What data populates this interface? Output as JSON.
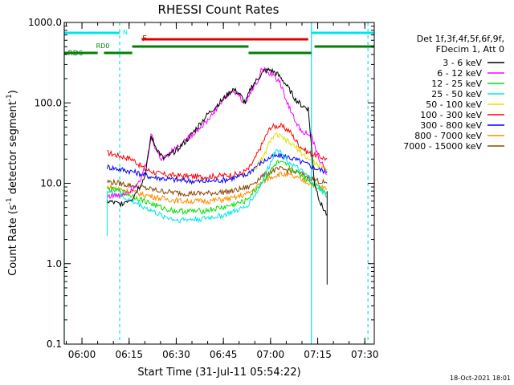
{
  "chart_data": {
    "type": "line",
    "title": "RHESSI Count Rates",
    "xlabel": "Start Time (31-Jul-11 05:54:22)",
    "ylabel_main": "Count Rate (s",
    "ylabel_sup1": "-1",
    "ylabel_mid": " detector segment",
    "ylabel_sup2": "-1",
    "ylabel_end": ")",
    "y_scale": "log",
    "ylim": [
      0.1,
      1000
    ],
    "xlim": [
      "05:54:22",
      "07:33:00"
    ],
    "x_ticks": [
      {
        "t": "06:00",
        "label": "06:00"
      },
      {
        "t": "06:15",
        "label": "06:15"
      },
      {
        "t": "06:30",
        "label": "06:30"
      },
      {
        "t": "06:45",
        "label": "06:45"
      },
      {
        "t": "07:00",
        "label": "07:00"
      },
      {
        "t": "07:15",
        "label": "07:15"
      },
      {
        "t": "07:30",
        "label": "07:30"
      }
    ],
    "y_ticks": [
      {
        "value": 0.1,
        "label": "0.1"
      },
      {
        "value": 1,
        "label": "1.0"
      },
      {
        "value": 10,
        "label": "10.0"
      },
      {
        "value": 100,
        "label": "100.0"
      },
      {
        "value": 1000,
        "label": "1000.0"
      }
    ],
    "legend": {
      "placement": "right",
      "header": [
        "Det 1f,3f,4f,5f,6f,9f,",
        "FDecim 1, Att 0"
      ],
      "entries": [
        {
          "label": "3 - 6 keV",
          "color": "#000000"
        },
        {
          "label": "6 - 12 keV",
          "color": "#ff00ff"
        },
        {
          "label": "12 - 25 keV",
          "color": "#00e000"
        },
        {
          "label": "25 - 50 keV",
          "color": "#00e5e5"
        },
        {
          "label": "50 - 100 keV",
          "color": "#e0e000"
        },
        {
          "label": "100 - 300 keV",
          "color": "#ff0000"
        },
        {
          "label": "300 - 800 keV",
          "color": "#0000ff"
        },
        {
          "label": "800 - 7000 keV",
          "color": "#ff8c00"
        },
        {
          "label": "7000 - 15000 keV",
          "color": "#8b4500"
        }
      ]
    },
    "series": [
      {
        "color": "#ff0000",
        "points": [
          [
            "06:08",
            24
          ],
          [
            "06:12",
            22
          ],
          [
            "06:16",
            20
          ],
          [
            "06:20",
            15
          ],
          [
            "06:25",
            13
          ],
          [
            "06:30",
            12.5
          ],
          [
            "06:38",
            12
          ],
          [
            "06:45",
            12.5
          ],
          [
            "06:50",
            13
          ],
          [
            "06:53",
            15
          ],
          [
            "06:55",
            20
          ],
          [
            "06:58",
            35
          ],
          [
            "07:00",
            50
          ],
          [
            "07:03",
            52
          ],
          [
            "07:06",
            45
          ],
          [
            "07:09",
            30
          ],
          [
            "07:12",
            24
          ],
          [
            "07:15",
            22
          ],
          [
            "07:18",
            20
          ]
        ]
      },
      {
        "color": "#0000ff",
        "points": [
          [
            "06:08",
            16
          ],
          [
            "06:12",
            15
          ],
          [
            "06:16",
            14
          ],
          [
            "06:22",
            12
          ],
          [
            "06:30",
            11
          ],
          [
            "06:38",
            10.5
          ],
          [
            "06:45",
            11
          ],
          [
            "06:52",
            12.5
          ],
          [
            "06:56",
            17
          ],
          [
            "07:00",
            21
          ],
          [
            "07:03",
            22
          ],
          [
            "07:06",
            21
          ],
          [
            "07:09",
            19
          ],
          [
            "07:12",
            17
          ],
          [
            "07:15",
            15
          ],
          [
            "07:18",
            14
          ]
        ]
      },
      {
        "color": "#8b4500",
        "points": [
          [
            "06:08",
            10.5
          ],
          [
            "06:12",
            10
          ],
          [
            "06:18",
            9
          ],
          [
            "06:25",
            8
          ],
          [
            "06:32",
            7.5
          ],
          [
            "06:40",
            7.5
          ],
          [
            "06:48",
            8
          ],
          [
            "06:53",
            9
          ],
          [
            "06:57",
            12
          ],
          [
            "07:00",
            14
          ],
          [
            "07:03",
            15
          ],
          [
            "07:06",
            14.5
          ],
          [
            "07:10",
            13
          ],
          [
            "07:14",
            11
          ],
          [
            "07:18",
            10
          ]
        ]
      },
      {
        "color": "#ff8c00",
        "points": [
          [
            "06:08",
            9
          ],
          [
            "06:12",
            8.5
          ],
          [
            "06:18",
            7.5
          ],
          [
            "06:25",
            6.5
          ],
          [
            "06:32",
            6
          ],
          [
            "06:40",
            6
          ],
          [
            "06:48",
            6.5
          ],
          [
            "06:53",
            7.5
          ],
          [
            "06:57",
            10
          ],
          [
            "07:00",
            12
          ],
          [
            "07:03",
            13
          ],
          [
            "07:06",
            12.5
          ],
          [
            "07:10",
            11
          ],
          [
            "07:14",
            9.5
          ],
          [
            "07:18",
            8.5
          ]
        ]
      },
      {
        "color": "#00e000",
        "points": [
          [
            "06:08",
            8.5
          ],
          [
            "06:12",
            8
          ],
          [
            "06:18",
            6.5
          ],
          [
            "06:25",
            5
          ],
          [
            "06:30",
            4.5
          ],
          [
            "06:38",
            4.5
          ],
          [
            "06:45",
            5
          ],
          [
            "06:52",
            6
          ],
          [
            "06:56",
            9
          ],
          [
            "07:00",
            14
          ],
          [
            "07:02",
            18
          ],
          [
            "07:05",
            17
          ],
          [
            "07:08",
            14
          ],
          [
            "07:12",
            11
          ],
          [
            "07:15",
            9
          ],
          [
            "07:18",
            7.5
          ]
        ]
      },
      {
        "color": "#00e5e5",
        "points": [
          [
            "06:08",
            8
          ],
          [
            "06:12",
            7
          ],
          [
            "06:18",
            5.5
          ],
          [
            "06:25",
            4
          ],
          [
            "06:30",
            3.5
          ],
          [
            "06:38",
            3.6
          ],
          [
            "06:45",
            4
          ],
          [
            "06:52",
            5
          ],
          [
            "06:56",
            8
          ],
          [
            "07:00",
            18
          ],
          [
            "07:02",
            28
          ],
          [
            "07:04",
            22
          ],
          [
            "07:07",
            17
          ],
          [
            "07:12",
            12
          ],
          [
            "07:15",
            9
          ],
          [
            "07:18",
            7
          ]
        ]
      },
      {
        "color": "#e0e000",
        "points": [
          [
            "06:55",
            15
          ],
          [
            "06:58",
            22
          ],
          [
            "07:00",
            35
          ],
          [
            "07:02",
            40
          ],
          [
            "07:05",
            34
          ],
          [
            "07:08",
            28
          ],
          [
            "07:12",
            20
          ],
          [
            "07:15",
            17
          ],
          [
            "07:18",
            15
          ]
        ]
      },
      {
        "color": "#ff00ff",
        "points": [
          [
            "06:08",
            7
          ],
          [
            "06:12",
            7
          ],
          [
            "06:16",
            8.5
          ],
          [
            "06:19",
            12
          ],
          [
            "06:21",
            20
          ],
          [
            "06:22",
            42
          ],
          [
            "06:23",
            30
          ],
          [
            "06:25",
            20
          ],
          [
            "06:28",
            24
          ],
          [
            "06:32",
            32
          ],
          [
            "06:35",
            40
          ],
          [
            "06:40",
            60
          ],
          [
            "06:45",
            110
          ],
          [
            "06:48",
            140
          ],
          [
            "06:50",
            125
          ],
          [
            "06:52",
            95
          ],
          [
            "06:54",
            150
          ],
          [
            "06:56",
            180
          ],
          [
            "06:57",
            270
          ],
          [
            "06:59",
            240
          ],
          [
            "07:01",
            215
          ],
          [
            "07:03",
            180
          ],
          [
            "07:05",
            110
          ],
          [
            "07:07",
            70
          ],
          [
            "07:09",
            50
          ],
          [
            "07:11",
            42
          ],
          [
            "07:13",
            38
          ],
          [
            "07:15",
            22
          ],
          [
            "07:18",
            13
          ]
        ]
      },
      {
        "color": "#000000",
        "points": [
          [
            "06:08",
            6
          ],
          [
            "06:12",
            5.5
          ],
          [
            "06:16",
            6.5
          ],
          [
            "06:20",
            12
          ],
          [
            "06:22",
            38
          ],
          [
            "06:24",
            26
          ],
          [
            "06:26",
            20
          ],
          [
            "06:29",
            24
          ],
          [
            "06:33",
            33
          ],
          [
            "06:36",
            46
          ],
          [
            "06:40",
            72
          ],
          [
            "06:45",
            112
          ],
          [
            "06:48",
            148
          ],
          [
            "06:50",
            130
          ],
          [
            "06:52",
            100
          ],
          [
            "06:54",
            160
          ],
          [
            "06:56",
            200
          ],
          [
            "06:58",
            250
          ],
          [
            "07:00",
            255
          ],
          [
            "07:02",
            230
          ],
          [
            "07:04",
            190
          ],
          [
            "07:06",
            145
          ],
          [
            "07:08",
            110
          ],
          [
            "07:10",
            92
          ],
          [
            "07:12",
            85
          ],
          [
            "07:14",
            10
          ],
          [
            "07:16",
            5.5
          ],
          [
            "07:18",
            4
          ]
        ]
      }
    ],
    "sharp_drops": [
      {
        "color": "#00e5e5",
        "t": "06:08",
        "to": 2.2
      },
      {
        "color": "#000000",
        "t": "07:18",
        "to": 0.55
      }
    ],
    "state_bars": [
      {
        "label": "N",
        "color": "#00e5e5",
        "segments": [
          [
            "05:54:22",
            "06:12"
          ],
          [
            "07:13",
            "07:33"
          ]
        ]
      },
      {
        "label": "F",
        "color": "#e00000",
        "segments": [
          [
            "06:19",
            "07:12"
          ]
        ]
      },
      {
        "label": "RD0",
        "color": "#008000",
        "segments": [
          [
            "06:16",
            "06:53"
          ],
          [
            "07:14",
            "07:33"
          ]
        ]
      },
      {
        "label": "RD6",
        "color": "#008000",
        "segments": [
          [
            "05:54:22",
            "06:05"
          ],
          [
            "06:07",
            "06:16"
          ],
          [
            "06:53",
            "07:13"
          ]
        ]
      }
    ],
    "vlines": [
      {
        "t": "05:54:22",
        "color": "#00e5e5",
        "style": "solid"
      },
      {
        "t": "06:12",
        "color": "#00e5e5",
        "style": "dashed"
      },
      {
        "t": "07:13",
        "color": "#00e5e5",
        "style": "solid"
      },
      {
        "t": "07:31",
        "color": "#00e5e5",
        "style": "dashed"
      }
    ],
    "footer_timestamp": "18-Oct-2021 18:01"
  }
}
